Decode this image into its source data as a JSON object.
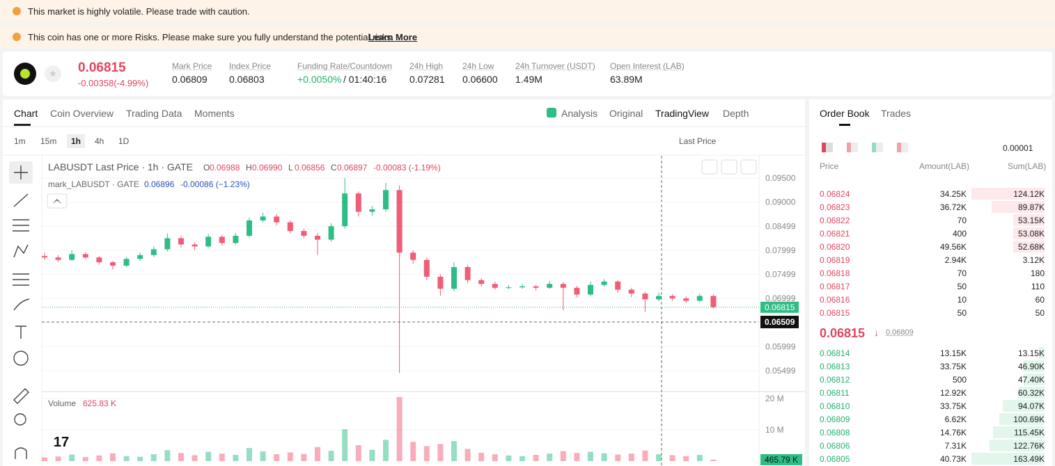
{
  "banners": [
    "This market is highly volatile. Please trade with caution.",
    "This coin has one or more Risks. Please make sure you fully understand the potential risks."
  ],
  "banner_link": "Learn More",
  "ticker": {
    "last_price": "0.06815",
    "change": "-0.00358(-4.99%)",
    "stats": [
      {
        "label": "Mark Price",
        "value": "0.06809"
      },
      {
        "label": "Index Price",
        "value": "0.06803"
      },
      {
        "label": "Funding Rate/Countdown",
        "value": "+0.0050%",
        "extra": "/ 01:40:16"
      },
      {
        "label": "24h High",
        "value": "0.07281"
      },
      {
        "label": "24h Low",
        "value": "0.06600"
      },
      {
        "label": "24h Turnover (USDT)",
        "value": "1.49M"
      },
      {
        "label": "Open Interest (LAB)",
        "value": "63.89M"
      }
    ]
  },
  "tabs": [
    "Chart",
    "Coin Overview",
    "Trading Data",
    "Moments"
  ],
  "views": [
    "Analysis",
    "Original",
    "TradingView",
    "Depth"
  ],
  "intervals": [
    "1m",
    "15m",
    "1h",
    "4h",
    "1D"
  ],
  "price_type": "Last Price",
  "legend": {
    "symbol": "LABUSDT Last Price · 1h · GATE",
    "ohlc": [
      {
        "k": "O",
        "v": "0.06988"
      },
      {
        "k": "H",
        "v": "0.06990"
      },
      {
        "k": "L",
        "v": "0.06856"
      },
      {
        "k": "C",
        "v": "0.06897"
      }
    ],
    "change": "-0.00083 (-1.19%)",
    "mark_symbol": "mark_LABUSDT · GATE",
    "mark_value": "0.06896",
    "mark_change": "-0.00086 (−1.23%)"
  },
  "chart": {
    "type": "candlestick",
    "ylim": [
      0.05078,
      0.09948
    ],
    "yticks": [
      {
        "value": 0.095,
        "label": "0.09500"
      },
      {
        "value": 0.09,
        "label": "0.09000"
      },
      {
        "value": 0.08499,
        "label": "0.08499"
      },
      {
        "value": 0.07999,
        "label": "0.07999"
      },
      {
        "value": 0.07499,
        "label": "0.07499"
      },
      {
        "value": 0.06999,
        "label": "0.06999"
      },
      {
        "value": 0.05999,
        "label": "0.05999"
      },
      {
        "value": 0.05499,
        "label": "0.05499"
      }
    ],
    "up_color": "#2ebd85",
    "down_color": "#ef5d76",
    "candles": [
      [
        0.0788,
        0.0795,
        0.078,
        0.0785
      ],
      [
        0.0785,
        0.079,
        0.0776,
        0.078
      ],
      [
        0.078,
        0.08,
        0.0778,
        0.0792
      ],
      [
        0.0792,
        0.0796,
        0.0782,
        0.0785
      ],
      [
        0.0785,
        0.0788,
        0.077,
        0.0775
      ],
      [
        0.0775,
        0.0778,
        0.076,
        0.0768
      ],
      [
        0.0768,
        0.0786,
        0.0765,
        0.0782
      ],
      [
        0.0782,
        0.0795,
        0.0778,
        0.079
      ],
      [
        0.079,
        0.0808,
        0.0786,
        0.0802
      ],
      [
        0.0802,
        0.0835,
        0.0798,
        0.0825
      ],
      [
        0.0825,
        0.083,
        0.0806,
        0.0812
      ],
      [
        0.0812,
        0.0816,
        0.08,
        0.0808
      ],
      [
        0.0808,
        0.0834,
        0.0805,
        0.0828
      ],
      [
        0.0828,
        0.0832,
        0.081,
        0.0815
      ],
      [
        0.0815,
        0.0836,
        0.0812,
        0.083
      ],
      [
        0.083,
        0.0868,
        0.0826,
        0.0862
      ],
      [
        0.0862,
        0.0878,
        0.0858,
        0.087
      ],
      [
        0.087,
        0.0875,
        0.0852,
        0.0858
      ],
      [
        0.0858,
        0.0862,
        0.0835,
        0.084
      ],
      [
        0.084,
        0.0845,
        0.0825,
        0.083
      ],
      [
        0.083,
        0.0835,
        0.079,
        0.0822
      ],
      [
        0.0822,
        0.0856,
        0.0818,
        0.085
      ],
      [
        0.085,
        0.095,
        0.0845,
        0.0918
      ],
      [
        0.0918,
        0.0922,
        0.087,
        0.088
      ],
      [
        0.088,
        0.0892,
        0.0872,
        0.0885
      ],
      [
        0.0885,
        0.094,
        0.088,
        0.0925
      ],
      [
        0.0925,
        0.0935,
        0.0545,
        0.0795
      ],
      [
        0.0795,
        0.08,
        0.0772,
        0.078
      ],
      [
        0.078,
        0.0785,
        0.0738,
        0.0745
      ],
      [
        0.0745,
        0.075,
        0.0705,
        0.072
      ],
      [
        0.072,
        0.0775,
        0.0715,
        0.0765
      ],
      [
        0.0765,
        0.077,
        0.0732,
        0.0738
      ],
      [
        0.0738,
        0.0742,
        0.0725,
        0.073
      ],
      [
        0.073,
        0.0735,
        0.0718,
        0.0722
      ],
      [
        0.0722,
        0.0728,
        0.0719,
        0.0723
      ],
      [
        0.0723,
        0.073,
        0.072,
        0.0725
      ],
      [
        0.0725,
        0.0728,
        0.0716,
        0.0722
      ],
      [
        0.0722,
        0.0736,
        0.072,
        0.073
      ],
      [
        0.073,
        0.0734,
        0.0675,
        0.0722
      ],
      [
        0.0722,
        0.0726,
        0.0702,
        0.0708
      ],
      [
        0.0708,
        0.0735,
        0.0705,
        0.0728
      ],
      [
        0.0728,
        0.074,
        0.0724,
        0.0735
      ],
      [
        0.0735,
        0.0738,
        0.0712,
        0.0718
      ],
      [
        0.0718,
        0.0722,
        0.0703,
        0.071
      ],
      [
        0.071,
        0.0714,
        0.0672,
        0.0698
      ],
      [
        0.0698,
        0.0712,
        0.0694,
        0.0705
      ],
      [
        0.0705,
        0.0709,
        0.0695,
        0.07
      ],
      [
        0.07,
        0.0704,
        0.069,
        0.0695
      ],
      [
        0.0695,
        0.071,
        0.0692,
        0.0705
      ],
      [
        0.0705,
        0.0708,
        0.0679,
        0.06815
      ]
    ],
    "last_line": {
      "value": 0.06815,
      "label": "0.06815"
    },
    "crosshair": {
      "value": 0.06509,
      "label": "0.06509"
    },
    "volume_title": "Volume",
    "volume_value": "625.83 K",
    "vlim": [
      0,
      22000000
    ],
    "vticks": [
      {
        "value": 20000000,
        "label": "20 M"
      },
      {
        "value": 10000000,
        "label": "10 M"
      }
    ],
    "volumes": [
      1200000,
      1500000,
      2100000,
      1300000,
      1800000,
      2500000,
      1600000,
      1400000,
      2200000,
      3500000,
      2600000,
      1900000,
      3000000,
      2400000,
      2000000,
      4200000,
      3100000,
      2200000,
      2800000,
      2300000,
      4500000,
      3300000,
      10200000,
      5100000,
      3600000,
      6800000,
      20500000,
      6200000,
      4800000,
      5500000,
      6400000,
      3900000,
      2700000,
      2200000,
      1800000,
      1600000,
      2000000,
      2400000,
      3200000,
      2600000,
      3000000,
      2500000,
      2100000,
      2400000,
      3400000,
      2200000,
      1900000,
      1600000,
      2000000,
      465790
    ],
    "volume_last_label": "465.79 K"
  },
  "order_book": {
    "tabs": [
      "Order Book",
      "Trades"
    ],
    "tick": "0.00001",
    "columns": [
      "Price",
      "Amount(LAB)",
      "Sum(LAB)"
    ],
    "asks": [
      {
        "price": "0.06824",
        "amount": "34.25K",
        "sum": {
          "value": 124120,
          "label": "124.12K"
        }
      },
      {
        "price": "0.06823",
        "amount": "36.72K",
        "sum": {
          "value": 89870,
          "label": "89.87K"
        }
      },
      {
        "price": "0.06822",
        "amount": "70",
        "sum": {
          "value": 53150,
          "label": "53.15K"
        }
      },
      {
        "price": "0.06821",
        "amount": "400",
        "sum": {
          "value": 53080,
          "label": "53.08K"
        }
      },
      {
        "price": "0.06820",
        "amount": "49.56K",
        "sum": {
          "value": 52680,
          "label": "52.68K"
        }
      },
      {
        "price": "0.06819",
        "amount": "2.94K",
        "sum": {
          "value": 3120,
          "label": "3.12K"
        }
      },
      {
        "price": "0.06818",
        "amount": "70",
        "sum": {
          "value": 180,
          "label": "180"
        }
      },
      {
        "price": "0.06817",
        "amount": "50",
        "sum": {
          "value": 110,
          "label": "110"
        }
      },
      {
        "price": "0.06816",
        "amount": "10",
        "sum": {
          "value": 60,
          "label": "60"
        }
      },
      {
        "price": "0.06815",
        "amount": "50",
        "sum": {
          "value": 50,
          "label": "50"
        }
      }
    ],
    "mid_price": "0.06815",
    "mid_mark": "0.06809",
    "bids": [
      {
        "price": "0.06814",
        "amount": "13.15K",
        "sum": {
          "value": 13150,
          "label": "13.15K"
        }
      },
      {
        "price": "0.06813",
        "amount": "33.75K",
        "sum": {
          "value": 46900,
          "label": "46.90K"
        }
      },
      {
        "price": "0.06812",
        "amount": "500",
        "sum": {
          "value": 47400,
          "label": "47.40K"
        }
      },
      {
        "price": "0.06811",
        "amount": "12.92K",
        "sum": {
          "value": 60320,
          "label": "60.32K"
        }
      },
      {
        "price": "0.06810",
        "amount": "33.75K",
        "sum": {
          "value": 94070,
          "label": "94.07K"
        }
      },
      {
        "price": "0.06809",
        "amount": "6.62K",
        "sum": {
          "value": 100690,
          "label": "100.69K"
        }
      },
      {
        "price": "0.06808",
        "amount": "14.76K",
        "sum": {
          "value": 115450,
          "label": "115.45K"
        }
      },
      {
        "price": "0.06806",
        "amount": "7.31K",
        "sum": {
          "value": 122760,
          "label": "122.76K"
        }
      },
      {
        "price": "0.06805",
        "amount": "40.73K",
        "sum": {
          "value": 163490,
          "label": "163.49K"
        }
      }
    ]
  }
}
